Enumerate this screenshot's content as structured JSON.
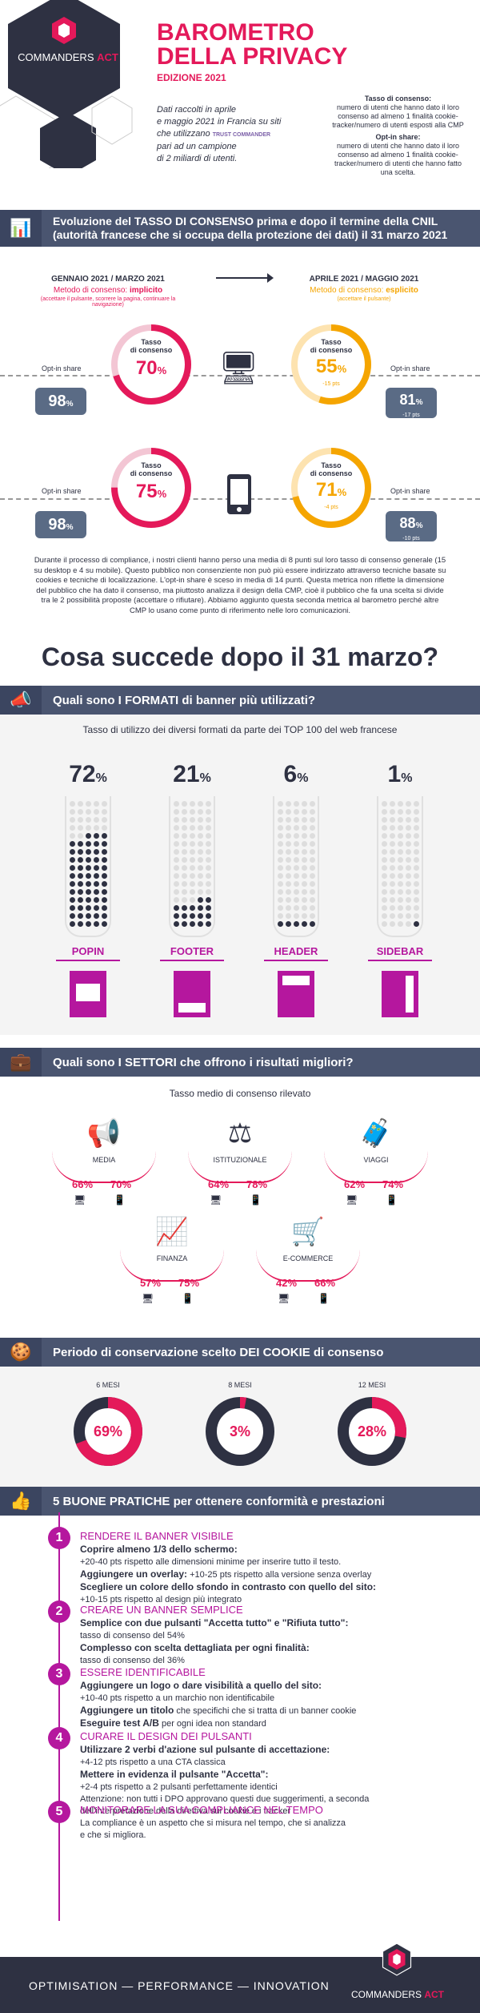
{
  "header": {
    "brand_a": "COMMANDERS",
    "brand_b": "ACT",
    "title_line1": "BAROMETRO",
    "title_line2": "DELLA PRIVACY",
    "edition": "EDIZIONE 2021",
    "intro_1": "Dati raccolti in aprile",
    "intro_2": "e maggio 2021 in Francia su siti",
    "intro_3": "che utilizzano",
    "intro_logo": "TRUST COMMANDER",
    "intro_4": "pari ad un campione",
    "intro_5": "di 2 miliardi di utenti.",
    "def_consent_title": "Tasso di consenso:",
    "def_consent_text": "numero di utenti che hanno dato il loro consenso ad almeno 1 finalità cookie-tracker/numero di utenti esposti alla CMP",
    "def_optin_title": "Opt-in share:",
    "def_optin_text": "numero di utenti che hanno dato il loro consenso ad almeno 1 finalità cookie-tracker/numero di utenti che hanno fatto una scelta."
  },
  "evolution": {
    "title_1": "Evoluzione del TASSO DI CONSENSO prima e dopo il termine della CNIL",
    "title_2": "(autorità francese che si occupa della protezione dei dati) il 31 marzo 2021",
    "left_period": "GENNAIO 2021 / MARZO 2021",
    "left_method_label": "Metodo di consenso:",
    "left_method": "implicito",
    "left_method_note": "(accettare il pulsante, scorrere la pagina, continuare la navigazione)",
    "right_period": "APRILE 2021 / MAGGIO 2021",
    "right_method_label": "Metodo di consenso:",
    "right_method": "esplicito",
    "right_method_note": "(accettare il pulsante)",
    "rate_label_1": "Tasso",
    "rate_label_2": "di consenso",
    "optin_label": "Opt-in share",
    "desktop": {
      "before_rate": "70",
      "after_rate": "55",
      "after_delta": "-15 pts",
      "before_optin": "98",
      "after_optin": "81",
      "after_optin_delta": "-17 pts"
    },
    "mobile": {
      "before_rate": "75",
      "after_rate": "71",
      "after_delta": "-4 pts",
      "before_optin": "98",
      "after_optin": "88",
      "after_optin_delta": "-10 pts"
    },
    "pct": "%",
    "paragraph": "Durante il processo di compliance, i nostri clienti hanno perso una media di 8 punti sul loro tasso di consenso generale (15 su desktop e 4 su mobile). Questo pubblico non consenziente non può più essere indirizzato attraverso tecniche basate su cookies e tecniche di localizzazione. L'opt-in share è sceso in media di 14 punti. Questa metrica non riflette la dimensione del pubblico che ha dato il consenso, ma piuttosto analizza il design della CMP, cioè il pubblico che fa una scelta si divide tra le 2 possibilità proposte (accettare o rifiutare). Abbiamo aggiunto questa seconda metrica al barometro perché altre CMP lo usano come punto di riferimento nelle loro comunicazioni."
  },
  "after_title": "Cosa succede dopo il 31 marzo?",
  "formats": {
    "title": "Quali sono I FORMATI di banner più utilizzati?",
    "subtitle": "Tasso di utilizzo dei diversi formati da parte dei TOP 100 del web francese",
    "items": [
      {
        "value": "72",
        "label": "POPIN",
        "fill": 0.72
      },
      {
        "value": "21",
        "label": "FOOTER",
        "fill": 0.21
      },
      {
        "value": "6",
        "label": "HEADER",
        "fill": 0.06
      },
      {
        "value": "1",
        "label": "SIDEBAR",
        "fill": 0.01
      }
    ],
    "pct": "%"
  },
  "sectors": {
    "title": "Quali sono I SETTORI che offrono i risultati migliori?",
    "subtitle": "Tasso medio di consenso rilevato",
    "items": [
      {
        "name": "MEDIA",
        "desktop": "66%",
        "mobile": "70%"
      },
      {
        "name": "ISTITUZIONALE",
        "desktop": "64%",
        "mobile": "78%"
      },
      {
        "name": "VIAGGI",
        "desktop": "62%",
        "mobile": "74%"
      },
      {
        "name": "FINANZA",
        "desktop": "57%",
        "mobile": "75%"
      },
      {
        "name": "E-COMMERCE",
        "desktop": "42%",
        "mobile": "66%"
      }
    ]
  },
  "cookies": {
    "title": "Periodo di conservazione scelto DEI COOKIE di consenso",
    "items": [
      {
        "period": "6 MESI",
        "value": "69%",
        "fraction": 0.69
      },
      {
        "period": "8 MESI",
        "value": "3%",
        "fraction": 0.03
      },
      {
        "period": "12 MESI",
        "value": "28%",
        "fraction": 0.28
      }
    ]
  },
  "practices": {
    "title": "5 BUONE PRATICHE per ottenere conformità e prestazioni",
    "items": [
      {
        "num": "1",
        "title": "RENDERE IL BANNER VISIBILE",
        "lines": [
          {
            "b": "Coprire almeno 1/3 dello schermo:",
            "t": ""
          },
          {
            "b": "",
            "t": "+20-40 pts rispetto alle dimensioni minime per inserire tutto il testo."
          },
          {
            "b": "Aggiungere un overlay:",
            "t": " +10-25 pts rispetto alla versione senza overlay"
          },
          {
            "b": "Scegliere un colore dello sfondo in contrasto con quello del sito:",
            "t": ""
          },
          {
            "b": "",
            "t": "+10-15 pts rispetto al design più integrato"
          }
        ]
      },
      {
        "num": "2",
        "title": "CREARE UN BANNER SEMPLICE",
        "lines": [
          {
            "b": "Semplice con due pulsanti \"Accetta tutto\" e \"Rifiuta tutto\":",
            "t": ""
          },
          {
            "b": "",
            "t": "tasso di consenso del 54%"
          },
          {
            "b": "Complesso con scelta dettagliata per ogni finalità:",
            "t": ""
          },
          {
            "b": "",
            "t": "tasso di consenso del 36%"
          }
        ]
      },
      {
        "num": "3",
        "title": "ESSERE IDENTIFICABILE",
        "lines": [
          {
            "b": "Aggiungere un logo o dare visibilità a quello del sito:",
            "t": ""
          },
          {
            "b": "",
            "t": "+10-40 pts rispetto a un marchio non identificabile"
          },
          {
            "b": "Aggiungere un titolo",
            "t": " che specifichi che si tratta di un banner cookie"
          },
          {
            "b": "Eseguire test A/B",
            "t": " per ogni idea non standard"
          }
        ]
      },
      {
        "num": "4",
        "title": "CURARE IL DESIGN DEI PULSANTI",
        "lines": [
          {
            "b": "Utilizzare 2 verbi d'azione sul pulsante di accettazione:",
            "t": ""
          },
          {
            "b": "",
            "t": "+4-12 pts rispetto a una CTA classica"
          },
          {
            "b": "Mettere in evidenza il pulsante \"Accetta\":",
            "t": ""
          },
          {
            "b": "",
            "t": "+2-4 pts rispetto a 2 pulsanti perfettamente identici"
          },
          {
            "b": "",
            "t": "Attenzione: non tutti i DPO approvano questi due suggerimenti, a seconda"
          },
          {
            "b": "",
            "t": "dell'interpretazione della direttiva sui cookie e i tracker"
          }
        ]
      },
      {
        "num": "5",
        "title": "MONITORARE LA SUA COMPLIANCE NEL TEMPO",
        "lines": [
          {
            "b": "",
            "t": "La compliance è un aspetto che si misura nel tempo, che si analizza"
          },
          {
            "b": "",
            "t": "e che si migliora."
          }
        ]
      }
    ]
  },
  "footer": {
    "tagline": "OPTIMISATION — PERFORMANCE — INNOVATION",
    "brand_a": "COMMANDERS",
    "brand_b": "ACT"
  },
  "colors": {
    "magenta": "#e4195a",
    "orange": "#f5a500",
    "purple": "#b5179e",
    "navy": "#2e3142",
    "slate": "#4a5570"
  }
}
